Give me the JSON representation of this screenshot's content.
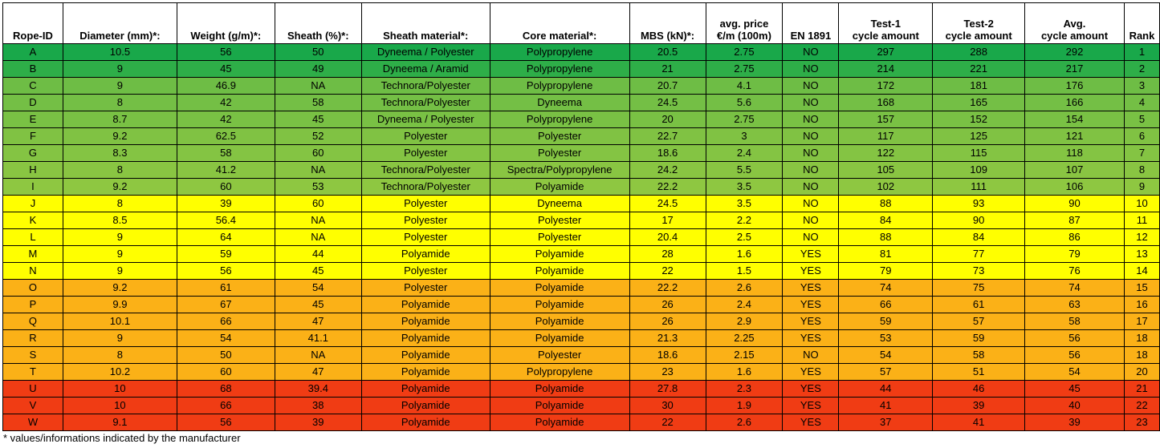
{
  "headers": [
    "Rope-ID",
    "Diameter (mm)*:",
    "Weight (g/m)*:",
    "Sheath (%)*:",
    "Sheath material*:",
    "Core material*:",
    "MBS (kN)*:",
    "avg. price\n€/m (100m)",
    "EN 1891",
    "Test-1\ncycle amount",
    "Test-2\ncycle amount",
    "Avg.\ncycle amount",
    "Rank"
  ],
  "rows": [
    {
      "cells": [
        "A",
        "10.5",
        "56",
        "50",
        "Dyneema / Polyester",
        "Polypropylene",
        "20.5",
        "2.75",
        "NO",
        "297",
        "288",
        "292",
        "1"
      ],
      "color": "#19a84a"
    },
    {
      "cells": [
        "B",
        "9",
        "45",
        "49",
        "Dyneema / Aramid",
        "Polypropylene",
        "21",
        "2.75",
        "NO",
        "214",
        "221",
        "217",
        "2"
      ],
      "color": "#2eae48"
    },
    {
      "cells": [
        "C",
        "9",
        "46.9",
        "NA",
        "Technora/Polyester",
        "Polypropylene",
        "20.7",
        "4.1",
        "NO",
        "172",
        "181",
        "176",
        "3"
      ],
      "color": "#6ebd45"
    },
    {
      "cells": [
        "D",
        "8",
        "42",
        "58",
        "Technora/Polyester",
        "Dyneema",
        "24.5",
        "5.6",
        "NO",
        "168",
        "165",
        "166",
        "4"
      ],
      "color": "#74bf45"
    },
    {
      "cells": [
        "E",
        "8.7",
        "42",
        "45",
        "Dyneema / Polyester",
        "Polypropylene",
        "20",
        "2.75",
        "NO",
        "157",
        "152",
        "154",
        "5"
      ],
      "color": "#79c144"
    },
    {
      "cells": [
        "F",
        "9.2",
        "62.5",
        "52",
        "Polyester",
        "Polyester",
        "22.7",
        "3",
        "NO",
        "117",
        "125",
        "121",
        "6"
      ],
      "color": "#80c243"
    },
    {
      "cells": [
        "G",
        "8.3",
        "58",
        "60",
        "Polyester",
        "Polyester",
        "18.6",
        "2.4",
        "NO",
        "122",
        "115",
        "118",
        "7"
      ],
      "color": "#84c443"
    },
    {
      "cells": [
        "H",
        "8",
        "41.2",
        "NA",
        "Technora/Polyester",
        "Spectra/Polypropylene",
        "24.2",
        "5.5",
        "NO",
        "105",
        "109",
        "107",
        "8"
      ],
      "color": "#89c542"
    },
    {
      "cells": [
        "I",
        "9.2",
        "60",
        "53",
        "Technora/Polyester",
        "Polyamide",
        "22.2",
        "3.5",
        "NO",
        "102",
        "111",
        "106",
        "9"
      ],
      "color": "#8ec741"
    },
    {
      "cells": [
        "J",
        "8",
        "39",
        "60",
        "Polyester",
        "Dyneema",
        "24.5",
        "3.5",
        "NO",
        "88",
        "93",
        "90",
        "10"
      ],
      "color": "#ffff00"
    },
    {
      "cells": [
        "K",
        "8.5",
        "56.4",
        "NA",
        "Polyester",
        "Polyester",
        "17",
        "2.2",
        "NO",
        "84",
        "90",
        "87",
        "11"
      ],
      "color": "#ffff00"
    },
    {
      "cells": [
        "L",
        "9",
        "64",
        "NA",
        "Polyester",
        "Polyester",
        "20.4",
        "2.5",
        "NO",
        "88",
        "84",
        "86",
        "12"
      ],
      "color": "#ffff00"
    },
    {
      "cells": [
        "M",
        "9",
        "59",
        "44",
        "Polyamide",
        "Polyamide",
        "28",
        "1.6",
        "YES",
        "81",
        "77",
        "79",
        "13"
      ],
      "color": "#ffff00"
    },
    {
      "cells": [
        "N",
        "9",
        "56",
        "45",
        "Polyester",
        "Polyamide",
        "22",
        "1.5",
        "YES",
        "79",
        "73",
        "76",
        "14"
      ],
      "color": "#ffff00"
    },
    {
      "cells": [
        "O",
        "9.2",
        "61",
        "54",
        "Polyester",
        "Polyamide",
        "22.2",
        "2.6",
        "YES",
        "74",
        "75",
        "74",
        "15"
      ],
      "color": "#fbb117"
    },
    {
      "cells": [
        "P",
        "9.9",
        "67",
        "45",
        "Polyamide",
        "Polyamide",
        "26",
        "2.4",
        "YES",
        "66",
        "61",
        "63",
        "16"
      ],
      "color": "#fbb117"
    },
    {
      "cells": [
        "Q",
        "10.1",
        "66",
        "47",
        "Polyamide",
        "Polyamide",
        "26",
        "2.9",
        "YES",
        "59",
        "57",
        "58",
        "17"
      ],
      "color": "#fbb117"
    },
    {
      "cells": [
        "R",
        "9",
        "54",
        "41.1",
        "Polyamide",
        "Polyamide",
        "21.3",
        "2.25",
        "YES",
        "53",
        "59",
        "56",
        "18"
      ],
      "color": "#fbb117"
    },
    {
      "cells": [
        "S",
        "8",
        "50",
        "NA",
        "Polyamide",
        "Polyester",
        "18.6",
        "2.15",
        "NO",
        "54",
        "58",
        "56",
        "18"
      ],
      "color": "#fbb117"
    },
    {
      "cells": [
        "T",
        "10.2",
        "60",
        "47",
        "Polyamide",
        "Polypropylene",
        "23",
        "1.6",
        "YES",
        "57",
        "51",
        "54",
        "20"
      ],
      "color": "#fbb117"
    },
    {
      "cells": [
        "U",
        "10",
        "68",
        "39.4",
        "Polyamide",
        "Polyamide",
        "27.8",
        "2.3",
        "YES",
        "44",
        "46",
        "45",
        "21"
      ],
      "color": "#f03c14"
    },
    {
      "cells": [
        "V",
        "10",
        "66",
        "38",
        "Polyamide",
        "Polyamide",
        "30",
        "1.9",
        "YES",
        "41",
        "39",
        "40",
        "22"
      ],
      "color": "#f03c14"
    },
    {
      "cells": [
        "W",
        "9.1",
        "56",
        "39",
        "Polyamide",
        "Polyamide",
        "22",
        "2.6",
        "YES",
        "37",
        "41",
        "39",
        "23"
      ],
      "color": "#f03c14"
    }
  ],
  "footnote": "* values/informations indicated by the manufacturer"
}
